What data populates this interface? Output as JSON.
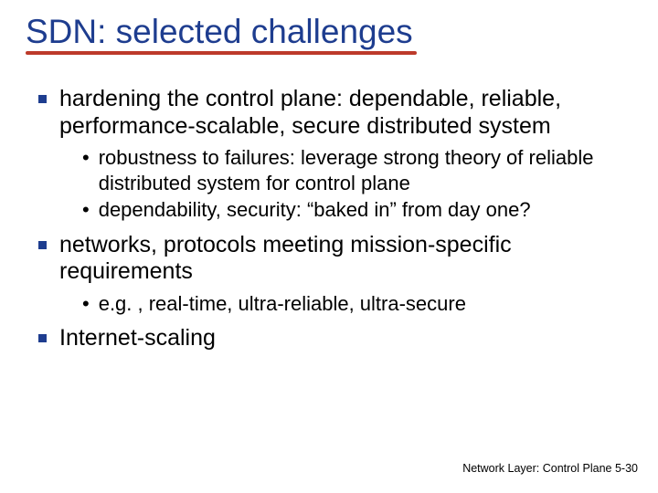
{
  "colors": {
    "title": "#1e3d8f",
    "underline": "#bd3a2a",
    "bullet": "#1e3d8f",
    "text": "#000000",
    "footer": "#000000",
    "background": "#ffffff"
  },
  "title": "SDN:  selected challenges",
  "bullets": [
    {
      "text": "hardening the control plane: dependable, reliable, performance-scalable, secure distributed system",
      "sub": [
        "robustness to failures: leverage strong theory of reliable distributed system for control plane",
        "dependability, security: “baked in” from day one?"
      ]
    },
    {
      "text": "networks, protocols meeting mission-specific requirements",
      "sub": [
        "e.g. , real-time, ultra-reliable, ultra-secure"
      ]
    },
    {
      "text": "Internet-scaling",
      "sub": []
    }
  ],
  "footer": {
    "section": "Network Layer: Control Plane",
    "pagePrefix": "5-",
    "pageNum": "30"
  },
  "typography": {
    "title_fontsize": 37,
    "l1_fontsize": 25,
    "l2_fontsize": 22,
    "footer_fontsize": 12.5
  }
}
